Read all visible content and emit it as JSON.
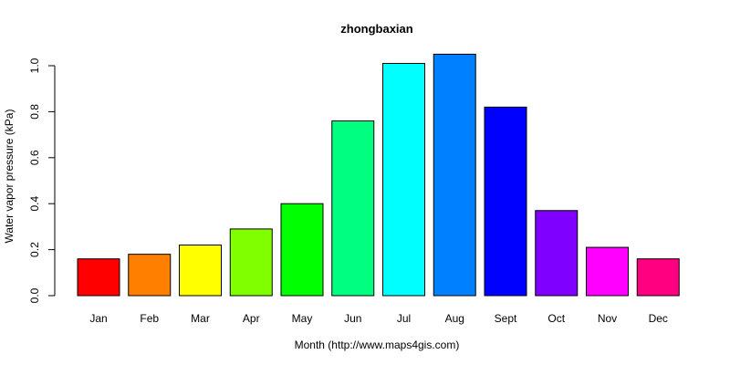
{
  "chart_data": {
    "type": "bar",
    "title": "zhongbaxian",
    "xlabel": "Month (http://www.maps4gis.com)",
    "ylabel": "Water vapor pressure (kPa)",
    "categories": [
      "Jan",
      "Feb",
      "Mar",
      "Apr",
      "May",
      "Jun",
      "Jul",
      "Aug",
      "Sept",
      "Oct",
      "Nov",
      "Dec"
    ],
    "values": [
      0.16,
      0.18,
      0.22,
      0.29,
      0.4,
      0.76,
      1.01,
      1.05,
      0.82,
      0.37,
      0.21,
      0.16
    ],
    "colors": [
      "#ff0000",
      "#ff8000",
      "#ffff00",
      "#80ff00",
      "#00ff00",
      "#00ff80",
      "#00ffff",
      "#0080ff",
      "#0000ff",
      "#8000ff",
      "#ff00ff",
      "#ff0080"
    ],
    "yticks": [
      "0.0",
      "0.2",
      "0.4",
      "0.6",
      "0.8",
      "1.0"
    ],
    "ylim": [
      0,
      1.05
    ],
    "grid": false,
    "legend": "none"
  }
}
